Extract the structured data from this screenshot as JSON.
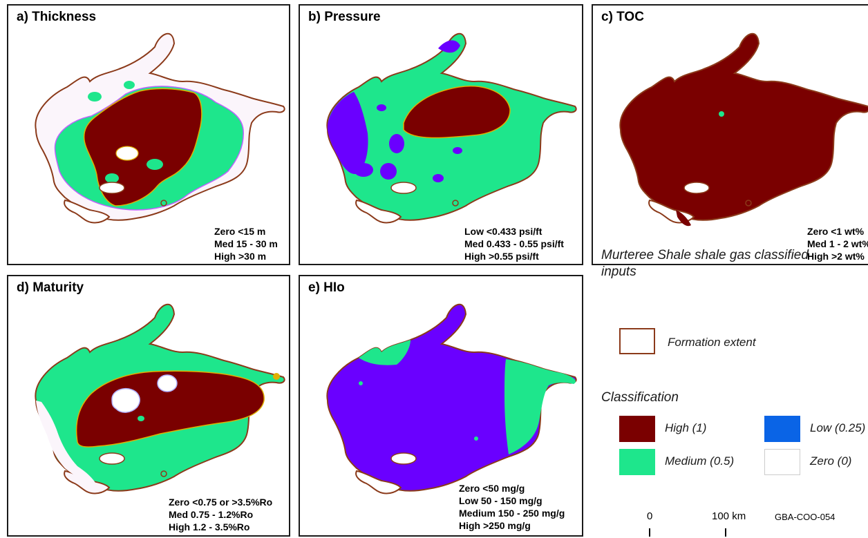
{
  "panels": [
    {
      "id": "a",
      "title": "a) Thickness",
      "legend": [
        "Zero <15 m",
        "Med 15 - 30 m",
        "High >30 m"
      ]
    },
    {
      "id": "b",
      "title": "b) Pressure",
      "legend": [
        "Low <0.433 psi/ft",
        "Med 0.433 - 0.55 psi/ft",
        "High >0.55 psi/ft"
      ]
    },
    {
      "id": "c",
      "title": "c) TOC",
      "legend": [
        "Zero <1 wt%",
        "Med 1 - 2 wt%",
        "High >2 wt%"
      ]
    },
    {
      "id": "d",
      "title": "d) Maturity",
      "legend": [
        "Zero <0.75 or >3.5%Ro",
        "Med 0.75 - 1.2%Ro",
        "High 1.2 - 3.5%Ro"
      ]
    },
    {
      "id": "e",
      "title": "e) HIo",
      "legend": [
        "Zero <50 mg/g",
        "Low 50 - 150 mg/g",
        "Medium 150 - 250 mg/g",
        "High >250 mg/g"
      ]
    }
  ],
  "legend": {
    "title": "Murteree Shale shale gas classified inputs",
    "extent_label": "Formation extent",
    "classification_title": "Classification",
    "classes": [
      {
        "label": "High (1)",
        "color": "#7a0000"
      },
      {
        "label": "Low (0.25)",
        "color": "#0a64e6"
      },
      {
        "label": "Medium (0.5)",
        "color": "#1ee68c"
      },
      {
        "label": "Zero (0)",
        "color": "#ffffff"
      }
    ],
    "outline_color": "#8b3a1a"
  },
  "scale": {
    "start": "0",
    "end": "100 km"
  },
  "code": "GBA-COO-054",
  "colors": {
    "high": "#7a0000",
    "medium": "#1ee68c",
    "low": "#0a64e6",
    "hio_low": "#6a00ff",
    "zero": "#ffffff",
    "outline": "#8b3a1a"
  }
}
